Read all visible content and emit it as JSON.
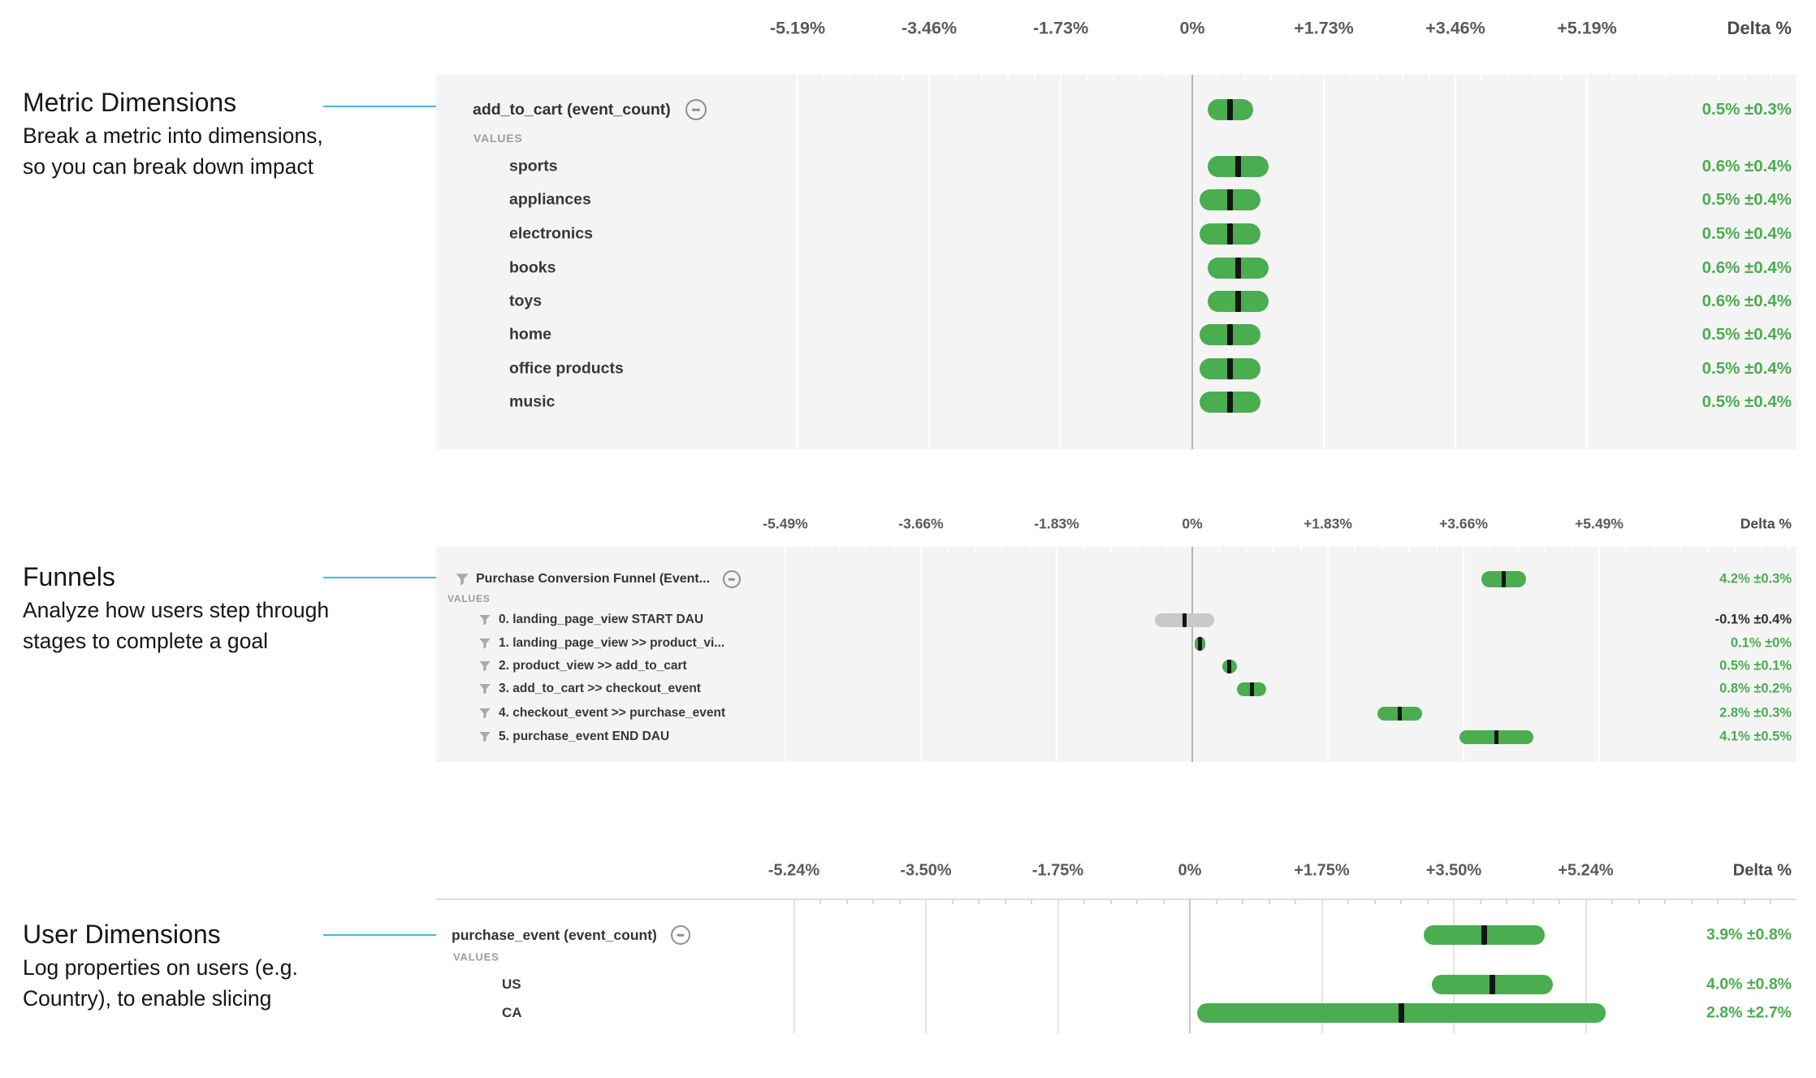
{
  "palette": {
    "green": "#4aad4f",
    "gray_bar": "#c9c9c9",
    "dark_text": "#2e2e2e",
    "connector_blue": "#45b8e6",
    "chart_bg": "#f4f4f5"
  },
  "annotations": [
    {
      "title": "Metric Dimensions",
      "desc_lines": [
        "Break a metric into dimensions,",
        "so you can break down impact"
      ]
    },
    {
      "title": "Funnels",
      "desc_lines": [
        "Analyze how users step through",
        "stages to complete a goal"
      ]
    },
    {
      "title": "User Dimensions",
      "desc_lines": [
        "Log properties on users (e.g.",
        "Country), to enable slicing"
      ]
    }
  ],
  "chart_data": [
    {
      "type": "bar",
      "subtype": "confidence_interval_plot",
      "title": "add_to_cart (event_count)",
      "values_label": "VALUES",
      "delta_header": "Delta %",
      "axis_ticks": [
        "-5.19%",
        "-3.46%",
        "-1.73%",
        "0%",
        "+1.73%",
        "+3.46%",
        "+5.19%"
      ],
      "axis_step_pct": 1.73,
      "xlim_pct": [
        -5.19,
        5.19
      ],
      "grid": true,
      "header": {
        "label": "add_to_cart (event_count)",
        "delta_pct": 0.5,
        "moe_pct": 0.3,
        "display": "0.5% ±0.3%",
        "bar": "green"
      },
      "rows": [
        {
          "label": "sports",
          "delta_pct": 0.6,
          "moe_pct": 0.4,
          "display": "0.6% ±0.4%",
          "bar": "green"
        },
        {
          "label": "appliances",
          "delta_pct": 0.5,
          "moe_pct": 0.4,
          "display": "0.5% ±0.4%",
          "bar": "green"
        },
        {
          "label": "electronics",
          "delta_pct": 0.5,
          "moe_pct": 0.4,
          "display": "0.5% ±0.4%",
          "bar": "green"
        },
        {
          "label": "books",
          "delta_pct": 0.6,
          "moe_pct": 0.4,
          "display": "0.6% ±0.4%",
          "bar": "green"
        },
        {
          "label": "toys",
          "delta_pct": 0.6,
          "moe_pct": 0.4,
          "display": "0.6% ±0.4%",
          "bar": "green"
        },
        {
          "label": "home",
          "delta_pct": 0.5,
          "moe_pct": 0.4,
          "display": "0.5% ±0.4%",
          "bar": "green"
        },
        {
          "label": "office products",
          "delta_pct": 0.5,
          "moe_pct": 0.4,
          "display": "0.5% ±0.4%",
          "bar": "green"
        },
        {
          "label": "music",
          "delta_pct": 0.5,
          "moe_pct": 0.4,
          "display": "0.5% ±0.4%",
          "bar": "green"
        }
      ]
    },
    {
      "type": "bar",
      "subtype": "confidence_interval_plot",
      "title": "Purchase Conversion Funnel (Event...",
      "values_label": "VALUES",
      "delta_header": "Delta %",
      "axis_ticks": [
        "-5.49%",
        "-3.66%",
        "-1.83%",
        "0%",
        "+1.83%",
        "+3.66%",
        "+5.49%"
      ],
      "axis_step_pct": 1.83,
      "xlim_pct": [
        -5.49,
        5.49
      ],
      "grid": true,
      "title_icon": "filter",
      "row_icons": "filter",
      "header": {
        "label": "Purchase Conversion Funnel (Event...",
        "delta_pct": 4.2,
        "moe_pct": 0.3,
        "display": "4.2% ±0.3%",
        "bar": "green"
      },
      "rows": [
        {
          "label": "0. landing_page_view START DAU",
          "delta_pct": -0.1,
          "moe_pct": 0.4,
          "display": "-0.1% ±0.4%",
          "bar": "gray",
          "text": "dark"
        },
        {
          "label": "1. landing_page_view >> product_vi...",
          "delta_pct": 0.1,
          "moe_pct": 0.0,
          "display": "0.1% ±0%",
          "bar": "green"
        },
        {
          "label": "2. product_view >> add_to_cart",
          "delta_pct": 0.5,
          "moe_pct": 0.1,
          "display": "0.5% ±0.1%",
          "bar": "green"
        },
        {
          "label": "3. add_to_cart >> checkout_event",
          "delta_pct": 0.8,
          "moe_pct": 0.2,
          "display": "0.8% ±0.2%",
          "bar": "green"
        },
        {
          "label": "4. checkout_event >> purchase_event",
          "delta_pct": 2.8,
          "moe_pct": 0.3,
          "display": "2.8% ±0.3%",
          "bar": "green"
        },
        {
          "label": "5. purchase_event END DAU",
          "delta_pct": 4.1,
          "moe_pct": 0.5,
          "display": "4.1% ±0.5%",
          "bar": "green"
        }
      ]
    },
    {
      "type": "bar",
      "subtype": "confidence_interval_plot",
      "title": "purchase_event (event_count)",
      "values_label": "VALUES",
      "delta_header": "Delta %",
      "axis_ticks": [
        "-5.24%",
        "-3.50%",
        "-1.75%",
        "0%",
        "+1.75%",
        "+3.50%",
        "+5.24%"
      ],
      "axis_step_pct": 1.7467,
      "xlim_pct": [
        -5.24,
        5.24
      ],
      "grid": true,
      "header": {
        "label": "purchase_event (event_count)",
        "delta_pct": 3.9,
        "moe_pct": 0.8,
        "display": "3.9% ±0.8%",
        "bar": "green"
      },
      "rows": [
        {
          "label": "US",
          "delta_pct": 4.0,
          "moe_pct": 0.8,
          "display": "4.0% ±0.8%",
          "bar": "green"
        },
        {
          "label": "CA",
          "delta_pct": 2.8,
          "moe_pct": 2.7,
          "display": "2.8% ±2.7%",
          "bar": "green"
        }
      ]
    }
  ]
}
